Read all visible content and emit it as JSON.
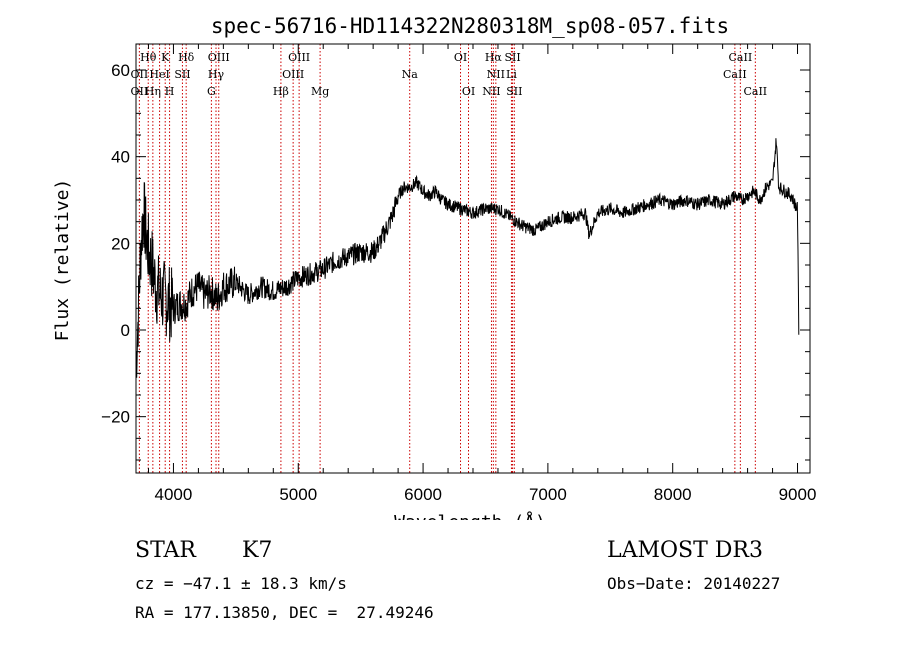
{
  "chart_data": {
    "type": "line",
    "title": "spec-56716-HD114322N280318M_sp08-057.fits",
    "xlabel": "Wavelength (Å)",
    "ylabel": "Flux (relative)",
    "xlim": [
      3700,
      9100
    ],
    "ylim": [
      -33,
      66
    ],
    "x_ticks": [
      4000,
      5000,
      6000,
      7000,
      8000,
      9000
    ],
    "y_ticks": [
      -20,
      0,
      20,
      40,
      60
    ],
    "x_tick_labels": [
      "4000",
      "5000",
      "6000",
      "7000",
      "8000",
      "9000"
    ],
    "y_tick_labels": [
      "−20",
      "0",
      "20",
      "40",
      "60"
    ],
    "series": [
      {
        "x": [
          3700,
          3720,
          3740,
          3760,
          3780,
          3800,
          3830,
          3860,
          3900,
          3950,
          4000,
          4050,
          4100,
          4150,
          4200,
          4250,
          4300,
          4350,
          4400,
          4500,
          4600,
          4700,
          4800,
          4900,
          5000,
          5100,
          5200,
          5300,
          5400,
          5500,
          5600,
          5650,
          5700,
          5750,
          5800,
          5850,
          5900,
          5950,
          6000,
          6050,
          6100,
          6150,
          6200,
          6300,
          6400,
          6500,
          6550,
          6600,
          6650,
          6700,
          6800,
          6900,
          7000,
          7100,
          7200,
          7300,
          7330,
          7400,
          7500,
          7600,
          7700,
          7800,
          7900,
          8000,
          8100,
          8200,
          8300,
          8400,
          8500,
          8550,
          8600,
          8650,
          8700,
          8750,
          8800,
          8830,
          8850,
          8900,
          8950,
          8980,
          9000,
          9010
        ],
        "y": [
          -8,
          5,
          20,
          28,
          22,
          18,
          15,
          10,
          8,
          7,
          5,
          6,
          6,
          9,
          10,
          8,
          9,
          7,
          10,
          11,
          8,
          10,
          9,
          10,
          12,
          13,
          14,
          16,
          17,
          18,
          18,
          20,
          23,
          26,
          31,
          33,
          33,
          34,
          32,
          31,
          32,
          30,
          29,
          28,
          27,
          28,
          28,
          28,
          27,
          26,
          24,
          23,
          25,
          26,
          26,
          27,
          22,
          27,
          28,
          27,
          28,
          29,
          30,
          29,
          30,
          29,
          30,
          29,
          31,
          30,
          31,
          32,
          30,
          33,
          34,
          44,
          33,
          32,
          31,
          29,
          28,
          0
        ]
      }
    ],
    "lines_top": [
      {
        "label": "Hθ",
        "x": 3798
      },
      {
        "label": "K",
        "x": 3934
      },
      {
        "label": "Hδ",
        "x": 4102
      },
      {
        "label": "OIII",
        "x": 4363
      },
      {
        "label": "OIII",
        "x": 5007
      },
      {
        "label": "OI",
        "x": 6300
      },
      {
        "label": "Hα",
        "x": 6563
      },
      {
        "label": "SII",
        "x": 6717
      },
      {
        "label": "CaII",
        "x": 8542
      }
    ],
    "lines_mid": [
      {
        "label": "OII",
        "x": 3727
      },
      {
        "label": "HeI",
        "x": 3889
      },
      {
        "label": "SII",
        "x": 4072
      },
      {
        "label": "Hγ",
        "x": 4341
      },
      {
        "label": "OIII",
        "x": 4959
      },
      {
        "label": "Na",
        "x": 5893
      },
      {
        "label": "NII",
        "x": 6583
      },
      {
        "label": "Li",
        "x": 6708
      },
      {
        "label": "CaII",
        "x": 8498
      }
    ],
    "lines_bot": [
      {
        "label": "OII",
        "x": 3727
      },
      {
        "label": "Hη",
        "x": 3835
      },
      {
        "label": "H",
        "x": 3969
      },
      {
        "label": "G",
        "x": 4304
      },
      {
        "label": "Hβ",
        "x": 4861
      },
      {
        "label": "Mg",
        "x": 5175
      },
      {
        "label": "OI",
        "x": 6364
      },
      {
        "label": "NII",
        "x": 6548
      },
      {
        "label": "SII",
        "x": 6731
      },
      {
        "label": "CaII",
        "x": 8662
      }
    ],
    "line_color": "#000000",
    "marker_color": "#cc0000"
  },
  "info": {
    "class": "STAR",
    "subclass": "K7",
    "survey": "LAMOST DR3",
    "cz": "cz = −47.1 ± 18.3 km/s",
    "obs_date": "Obs−Date: 20140227",
    "coords": "RA = 177.13850, DEC =  27.49246"
  }
}
